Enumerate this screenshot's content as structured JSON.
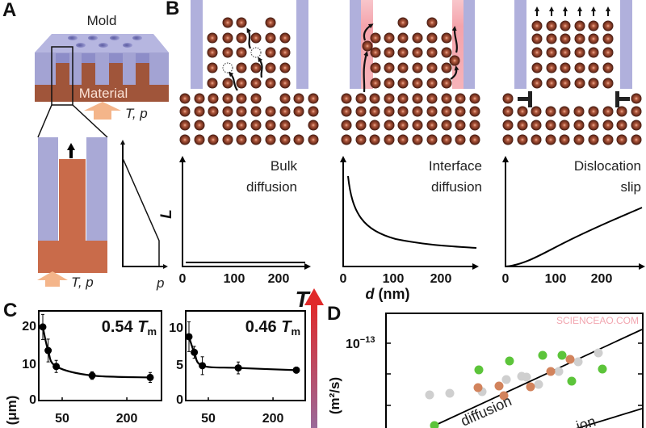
{
  "panels": {
    "A": {
      "label": "A",
      "mold": "Mold",
      "material": "Material",
      "tp": "T, p",
      "p_axis": "p"
    },
    "B": {
      "label": "B",
      "y_axis": "L",
      "mechanisms": [
        {
          "line1": "Bulk",
          "line2": "diffusion"
        },
        {
          "line1": "Interface",
          "line2": "diffusion"
        },
        {
          "line1": "Dislocation",
          "line2": "slip"
        }
      ],
      "x_ticks": [
        "0",
        "100",
        "200"
      ],
      "x_label_var": "d",
      "x_label_unit": " (nm)"
    },
    "C": {
      "label": "C",
      "y_unit": "(μm)"
    },
    "T_arrow": "T",
    "D": {
      "label": "D",
      "y_unit": "(m²/s)",
      "y_tick_base": "10",
      "y_tick_exp": "−13",
      "line_label": "diffusion",
      "line_label2": "ion"
    }
  },
  "colors": {
    "mold": "#a9a9d6",
    "material": "#a0553a",
    "material_light": "#c96b4a",
    "heat_arrow": "#f4b58a",
    "interface": "#f4a3ab",
    "T_arrow_top": "#e02a2a",
    "T_arrow_bottom": "#9a6a9a",
    "D_green": "#5cc43a",
    "D_orange": "#d2835c",
    "D_gray": "#cfcfcf"
  },
  "watermark": "SCIENCEAO.COM",
  "chart_data": [
    {
      "type": "scatter",
      "annotation": {
        "value": "0.54",
        "symbol": "T",
        "sub": "m"
      },
      "x_scale": "log",
      "x_ticks": [
        "50",
        "200"
      ],
      "y_ticks": [
        "0",
        "10",
        "20"
      ],
      "ylim": [
        0,
        22
      ],
      "ylabel": "(μm)",
      "x": [
        33,
        37,
        44,
        95,
        330
      ],
      "y": [
        19.6,
        13.4,
        9.2,
        6.8,
        6.3
      ],
      "err": [
        3.3,
        3.0,
        1.6,
        1.0,
        1.3
      ],
      "fit": true
    },
    {
      "type": "scatter",
      "annotation": {
        "value": "0.46",
        "symbol": "T",
        "sub": "m"
      },
      "x_scale": "log",
      "x_ticks": [
        "50",
        "200"
      ],
      "y_ticks": [
        "0",
        "5",
        "10"
      ],
      "ylim": [
        0,
        11
      ],
      "x": [
        33,
        37,
        44,
        95,
        330
      ],
      "y": [
        8.7,
        6.6,
        4.8,
        4.5,
        4.2
      ],
      "err": [
        2.0,
        0.8,
        1.2,
        0.8,
        0.4
      ],
      "fit": true
    }
  ]
}
